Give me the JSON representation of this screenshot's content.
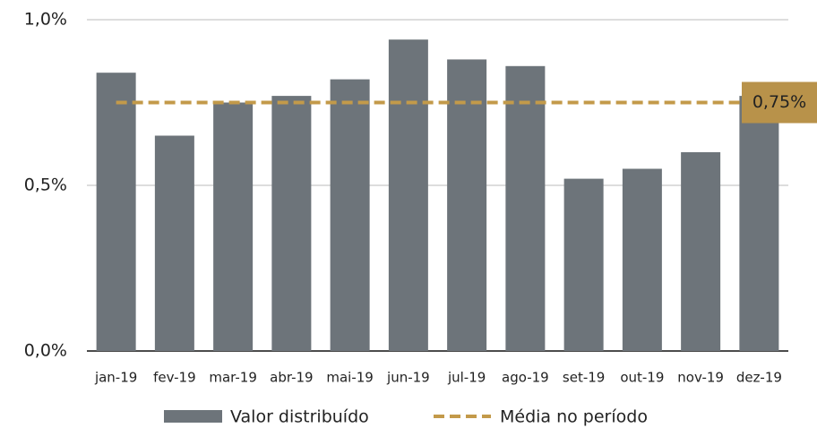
{
  "chart_data": {
    "type": "bar",
    "categories": [
      "jan-19",
      "fev-19",
      "mar-19",
      "abr-19",
      "mai-19",
      "jun-19",
      "jul-19",
      "ago-19",
      "set-19",
      "out-19",
      "nov-19",
      "dez-19"
    ],
    "series": [
      {
        "name": "Valor distribuído",
        "type": "bar",
        "color": "#6d747a",
        "values": [
          0.84,
          0.65,
          0.75,
          0.77,
          0.82,
          0.94,
          0.88,
          0.86,
          0.52,
          0.55,
          0.6,
          0.77
        ]
      },
      {
        "name": "Média no período",
        "type": "line",
        "color": "#c39a4a",
        "values": [
          0.75,
          0.75,
          0.75,
          0.75,
          0.75,
          0.75,
          0.75,
          0.75,
          0.75,
          0.75,
          0.75,
          0.75
        ],
        "annotation": "0,75%"
      }
    ],
    "ylim": [
      0,
      1.0
    ],
    "yticks": [
      {
        "value": 0,
        "label": "0,0%"
      },
      {
        "value": 0.5,
        "label": "0,5%"
      },
      {
        "value": 1.0,
        "label": "1,0%"
      }
    ],
    "grid": true,
    "legend": "bottom"
  }
}
